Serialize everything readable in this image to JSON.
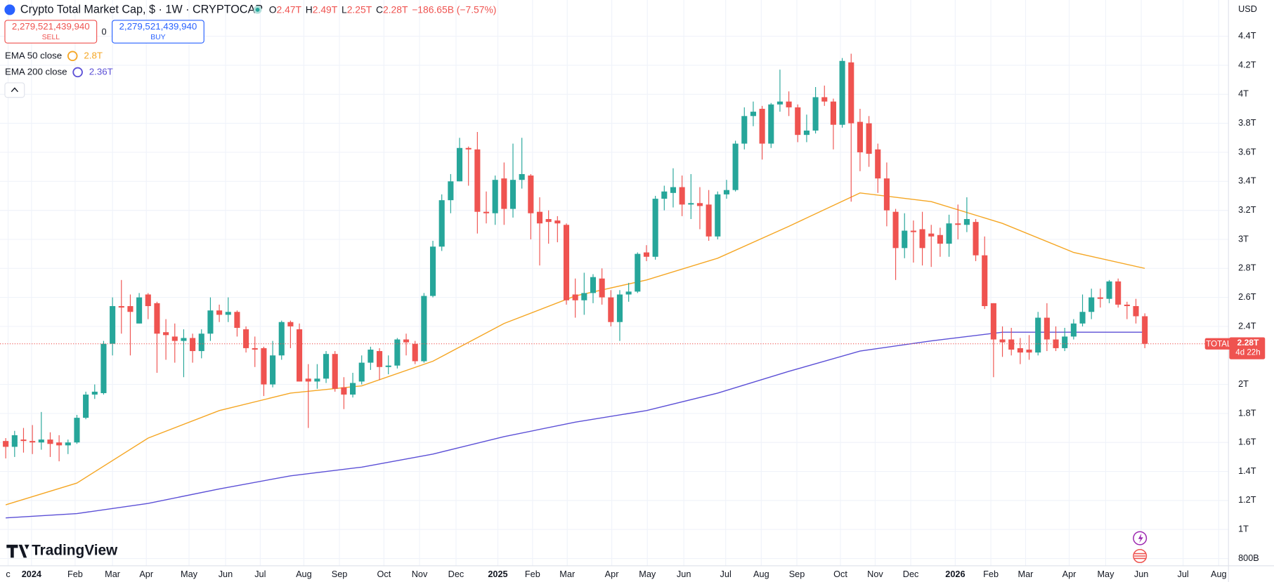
{
  "header": {
    "title": "Crypto Total Market Cap, $ · 1W · CRYPTOCAP",
    "ohlc": [
      {
        "key": "O",
        "value": "2.47T"
      },
      {
        "key": "H",
        "value": "2.49T"
      },
      {
        "key": "L",
        "value": "2.25T"
      },
      {
        "key": "C",
        "value": "2.28T"
      }
    ],
    "change": "−186.65B (−7.57%)",
    "sell": {
      "price": "2,279,521,439,940",
      "label": "SELL"
    },
    "spread": "0",
    "buy": {
      "price": "2,279,521,439,940",
      "label": "BUY"
    },
    "currency": "USD",
    "logo": "TradingView"
  },
  "chart_data": {
    "type": "candlestick",
    "up_color": "#26a69a",
    "down_color": "#ef5350",
    "open": [
      1.61,
      1.57,
      1.62,
      1.61,
      1.6,
      1.62,
      1.6,
      1.58,
      1.6,
      1.77,
      1.93,
      1.94,
      2.28,
      2.54,
      2.54,
      2.42,
      2.62,
      2.56,
      2.36,
      2.33,
      2.3,
      2.32,
      2.23,
      2.35,
      2.51,
      2.48,
      2.5,
      2.38,
      2.25,
      2.25,
      2.0,
      2.2,
      2.43,
      2.38,
      2.04,
      2.02,
      2.04,
      2.21,
      1.98,
      1.93,
      2.02,
      2.15,
      2.23,
      2.12,
      2.13,
      2.31,
      2.28,
      2.16,
      2.61,
      2.95,
      3.27,
      3.4,
      3.63,
      3.62,
      3.19,
      3.18,
      3.42,
      3.21,
      3.41,
      3.44,
      3.19,
      3.14,
      3.13,
      3.1,
      2.62,
      2.58,
      2.63,
      2.73,
      2.6,
      2.43,
      2.62,
      2.64,
      2.91,
      2.88,
      3.28,
      3.32,
      3.36,
      3.24,
      3.25,
      3.24,
      3.02,
      3.31,
      3.34,
      3.66,
      3.85,
      3.9,
      3.66,
      3.93,
      3.95,
      3.91,
      3.72,
      3.75,
      3.98,
      3.95,
      3.79,
      4.22,
      3.81,
      3.8,
      3.62,
      3.42,
      3.19,
      2.94,
      3.06,
      3.07,
      3.04,
      3.03,
      2.97,
      3.11,
      3.1,
      3.12,
      2.89,
      2.56,
      2.31,
      2.31,
      2.25,
      2.24,
      2.22,
      2.46,
      2.31,
      2.25,
      2.33,
      2.42,
      2.5,
      2.6,
      2.59,
      2.71,
      2.55,
      2.54,
      2.47
    ],
    "high": [
      1.63,
      1.68,
      1.7,
      1.72,
      1.81,
      1.67,
      1.65,
      1.62,
      1.79,
      1.95,
      2.0,
      2.3,
      2.6,
      2.72,
      2.62,
      2.63,
      2.63,
      2.57,
      2.45,
      2.42,
      2.38,
      2.35,
      2.38,
      2.6,
      2.55,
      2.6,
      2.51,
      2.4,
      2.33,
      2.26,
      2.3,
      2.44,
      2.44,
      2.42,
      2.14,
      2.14,
      2.23,
      2.23,
      2.05,
      2.08,
      2.2,
      2.26,
      2.25,
      2.2,
      2.32,
      2.35,
      2.3,
      2.63,
      2.99,
      3.31,
      3.45,
      3.7,
      3.64,
      3.74,
      3.33,
      3.44,
      3.53,
      3.66,
      3.7,
      3.45,
      3.29,
      3.2,
      3.16,
      3.11,
      2.73,
      2.77,
      2.76,
      2.8,
      2.65,
      2.65,
      2.7,
      2.91,
      2.96,
      3.3,
      3.37,
      3.49,
      3.44,
      3.45,
      3.36,
      3.34,
      3.33,
      3.41,
      3.68,
      3.91,
      3.95,
      3.92,
      3.94,
      4.17,
      4.02,
      3.93,
      3.86,
      4.05,
      4.06,
      3.97,
      4.25,
      4.28,
      3.9,
      3.85,
      3.66,
      3.53,
      3.21,
      3.18,
      3.13,
      3.19,
      3.1,
      3.08,
      3.17,
      3.24,
      3.29,
      3.14,
      3.02,
      2.56,
      2.4,
      2.39,
      2.32,
      2.34,
      2.5,
      2.56,
      2.4,
      2.39,
      2.45,
      2.62,
      2.66,
      2.66,
      2.72,
      2.73,
      2.57,
      2.59,
      2.49
    ],
    "low": [
      1.49,
      1.5,
      1.53,
      1.52,
      1.55,
      1.5,
      1.47,
      1.52,
      1.59,
      1.76,
      1.9,
      1.93,
      2.2,
      2.35,
      2.2,
      2.42,
      2.45,
      2.08,
      2.17,
      2.15,
      2.05,
      2.15,
      2.18,
      2.3,
      2.43,
      2.43,
      2.33,
      2.22,
      2.12,
      1.92,
      1.98,
      2.17,
      2.25,
      2.02,
      1.7,
      1.97,
      2.01,
      1.95,
      1.83,
      1.91,
      2.0,
      2.1,
      2.03,
      2.07,
      2.11,
      2.2,
      2.14,
      2.15,
      2.6,
      2.92,
      3.18,
      3.4,
      3.37,
      3.04,
      3.11,
      3.1,
      3.1,
      3.15,
      3.35,
      3.0,
      2.82,
      2.97,
      2.98,
      2.55,
      2.46,
      2.48,
      2.56,
      2.55,
      2.4,
      2.3,
      2.57,
      2.63,
      2.85,
      2.86,
      3.2,
      3.22,
      3.16,
      3.14,
      3.07,
      2.99,
      3.0,
      3.28,
      3.33,
      3.62,
      3.78,
      3.55,
      3.63,
      3.88,
      3.85,
      3.67,
      3.67,
      3.73,
      3.92,
      3.62,
      3.77,
      3.26,
      3.47,
      3.5,
      3.32,
      3.09,
      2.72,
      2.87,
      2.84,
      2.82,
      2.81,
      2.88,
      2.88,
      3.0,
      3.05,
      2.85,
      2.52,
      2.05,
      2.19,
      2.2,
      2.14,
      2.17,
      2.2,
      2.23,
      2.23,
      2.23,
      2.31,
      2.4,
      2.45,
      2.53,
      2.56,
      2.53,
      2.45,
      2.42,
      2.25
    ],
    "close": [
      1.57,
      1.65,
      1.61,
      1.6,
      1.62,
      1.59,
      1.58,
      1.6,
      1.77,
      1.93,
      1.95,
      2.28,
      2.54,
      2.53,
      2.5,
      2.6,
      2.54,
      2.35,
      2.34,
      2.3,
      2.32,
      2.23,
      2.35,
      2.51,
      2.48,
      2.5,
      2.39,
      2.25,
      2.24,
      2.0,
      2.2,
      2.43,
      2.4,
      2.02,
      2.02,
      2.04,
      2.21,
      1.97,
      1.93,
      2.01,
      2.15,
      2.24,
      2.12,
      2.13,
      2.31,
      2.29,
      2.16,
      2.61,
      2.95,
      3.27,
      3.4,
      3.63,
      3.62,
      3.19,
      3.18,
      3.41,
      3.21,
      3.41,
      3.45,
      3.18,
      3.11,
      3.12,
      3.11,
      2.58,
      2.58,
      2.63,
      2.74,
      2.6,
      2.43,
      2.62,
      2.64,
      2.9,
      2.88,
      3.28,
      3.33,
      3.36,
      3.24,
      3.25,
      3.23,
      3.02,
      3.31,
      3.34,
      3.66,
      3.85,
      3.88,
      3.66,
      3.93,
      3.95,
      3.91,
      3.72,
      3.75,
      3.98,
      3.95,
      3.79,
      4.23,
      3.8,
      3.6,
      3.59,
      3.42,
      3.2,
      2.94,
      3.06,
      3.05,
      2.94,
      3.02,
      2.97,
      3.11,
      3.1,
      3.14,
      2.89,
      2.54,
      2.31,
      2.29,
      2.24,
      2.22,
      2.22,
      2.46,
      2.31,
      2.25,
      2.33,
      2.42,
      2.5,
      2.6,
      2.59,
      2.71,
      2.55,
      2.54,
      2.47,
      2.28
    ],
    "series": [
      {
        "name": "EMA 50 close",
        "color": "#f5a623",
        "value_label": "2.8T",
        "x": [
          0,
          8,
          16,
          24,
          32,
          40,
          48,
          56,
          64,
          72,
          80,
          88,
          96,
          104,
          112,
          120,
          128
        ],
        "values": [
          1.17,
          1.32,
          1.63,
          1.82,
          1.94,
          1.99,
          2.16,
          2.42,
          2.61,
          2.72,
          2.87,
          3.09,
          3.32,
          3.26,
          3.11,
          2.91,
          2.8
        ]
      },
      {
        "name": "EMA 200 close",
        "color": "#5b4fd6",
        "value_label": "2.36T",
        "x": [
          0,
          8,
          16,
          24,
          32,
          40,
          48,
          56,
          64,
          72,
          80,
          88,
          96,
          104,
          112,
          120,
          128
        ],
        "values": [
          1.08,
          1.11,
          1.18,
          1.28,
          1.37,
          1.43,
          1.52,
          1.64,
          1.74,
          1.82,
          1.94,
          2.09,
          2.23,
          2.3,
          2.36,
          2.36,
          2.36
        ]
      }
    ],
    "last_price": {
      "value": 2.28,
      "label": "2.28T",
      "name": "TOTAL",
      "countdown": "4d 22h"
    },
    "xlim": [
      -0.64,
      137.4
    ],
    "xticks": [
      {
        "value": 0.27,
        "label": "c"
      },
      {
        "value": 2.9,
        "label": "2024"
      },
      {
        "value": 7.8,
        "label": "Feb"
      },
      {
        "value": 12.0,
        "label": "Mar"
      },
      {
        "value": 15.8,
        "label": "Apr"
      },
      {
        "value": 20.6,
        "label": "May"
      },
      {
        "value": 24.7,
        "label": "Jun"
      },
      {
        "value": 28.6,
        "label": "Jul"
      },
      {
        "value": 33.5,
        "label": "Aug"
      },
      {
        "value": 37.5,
        "label": "Sep"
      },
      {
        "value": 42.5,
        "label": "Oct"
      },
      {
        "value": 46.5,
        "label": "Nov"
      },
      {
        "value": 50.6,
        "label": "Dec"
      },
      {
        "value": 55.3,
        "label": "2025"
      },
      {
        "value": 59.2,
        "label": "Feb"
      },
      {
        "value": 63.1,
        "label": "Mar"
      },
      {
        "value": 68.1,
        "label": "Apr"
      },
      {
        "value": 72.1,
        "label": "May"
      },
      {
        "value": 76.2,
        "label": "Jun"
      },
      {
        "value": 80.9,
        "label": "Jul"
      },
      {
        "value": 84.9,
        "label": "Aug"
      },
      {
        "value": 88.9,
        "label": "Sep"
      },
      {
        "value": 93.8,
        "label": "Oct"
      },
      {
        "value": 97.7,
        "label": "Nov"
      },
      {
        "value": 101.7,
        "label": "Dec"
      },
      {
        "value": 106.7,
        "label": "2026"
      },
      {
        "value": 110.7,
        "label": "Feb"
      },
      {
        "value": 114.6,
        "label": "Mar"
      },
      {
        "value": 119.5,
        "label": "Apr"
      },
      {
        "value": 123.6,
        "label": "May"
      },
      {
        "value": 127.6,
        "label": "Jun"
      },
      {
        "value": 132.3,
        "label": "Jul"
      },
      {
        "value": 136.3,
        "label": "Aug"
      }
    ],
    "ylim": [
      0.75,
      4.65
    ],
    "yticks": [
      {
        "value": 0.8,
        "label": "800B"
      },
      {
        "value": 1,
        "label": "1T"
      },
      {
        "value": 1.2,
        "label": "1.2T"
      },
      {
        "value": 1.4,
        "label": "1.4T"
      },
      {
        "value": 1.6,
        "label": "1.6T"
      },
      {
        "value": 1.8,
        "label": "1.8T"
      },
      {
        "value": 2,
        "label": "2T"
      },
      {
        "value": 2.4,
        "label": "2.4T"
      },
      {
        "value": 2.6,
        "label": "2.6T"
      },
      {
        "value": 2.8,
        "label": "2.8T"
      },
      {
        "value": 3,
        "label": "3T"
      },
      {
        "value": 3.2,
        "label": "3.2T"
      },
      {
        "value": 3.4,
        "label": "3.4T"
      },
      {
        "value": 3.6,
        "label": "3.6T"
      },
      {
        "value": 3.8,
        "label": "3.8T"
      },
      {
        "value": 4,
        "label": "4T"
      },
      {
        "value": 4.2,
        "label": "4.2T"
      },
      {
        "value": 4.4,
        "label": "4.4T"
      }
    ],
    "grid": true
  }
}
